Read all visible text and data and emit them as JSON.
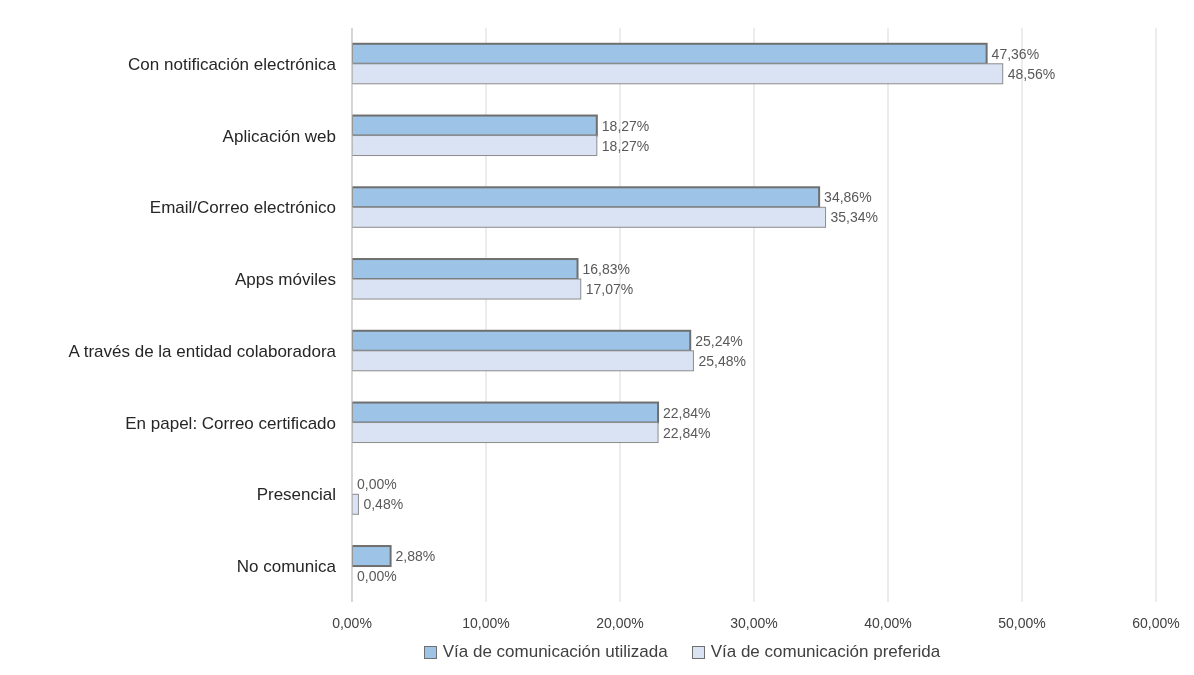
{
  "chart_data": {
    "type": "bar",
    "orientation": "horizontal",
    "categories": [
      "Con notificación electrónica",
      "Aplicación web",
      "Email/Correo electrónico",
      "Apps móviles",
      "A través de la entidad colaboradora",
      "En papel: Correo certificado",
      "Presencial",
      "No comunica"
    ],
    "series": [
      {
        "name": "Vía de comunicación utilizada",
        "color": "#9dc3e6",
        "values": [
          47.36,
          18.27,
          34.86,
          16.83,
          25.24,
          22.84,
          0,
          2.88
        ],
        "value_labels": [
          "47,36%",
          "18,27%",
          "34,86%",
          "16,83%",
          "25,24%",
          "22,84%",
          "0,00%",
          "2,88%"
        ]
      },
      {
        "name": "Vía de comunicación preferida",
        "color": "#dae3f3",
        "values": [
          48.56,
          18.27,
          35.34,
          17.07,
          25.48,
          22.84,
          0.48,
          0
        ],
        "value_labels": [
          "48,56%",
          "18,27%",
          "35,34%",
          "17,07%",
          "25,48%",
          "22,84%",
          "0,48%",
          "0,00%"
        ]
      }
    ],
    "xlim": [
      0,
      60
    ],
    "xticks": [
      {
        "value": 0,
        "label": "0,00%"
      },
      {
        "value": 10,
        "label": "10,00%"
      },
      {
        "value": 20,
        "label": "20,00%"
      },
      {
        "value": 30,
        "label": "30,00%"
      },
      {
        "value": 40,
        "label": "40,00%"
      },
      {
        "value": 50,
        "label": "50,00%"
      },
      {
        "value": 60,
        "label": "60,00%"
      }
    ],
    "grid": "x",
    "legend": "bottom"
  }
}
